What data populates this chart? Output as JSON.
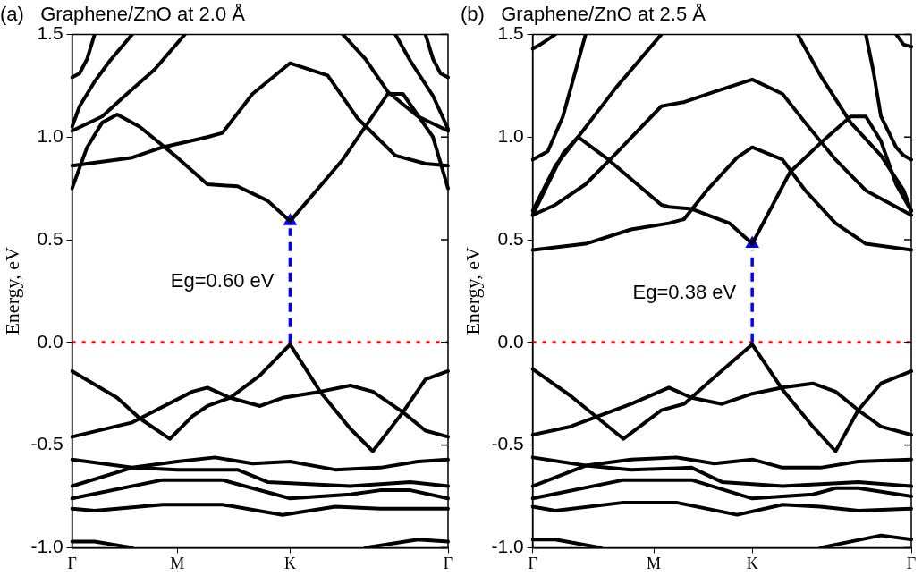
{
  "chart_data": [
    {
      "type": "line",
      "title": "(a)   Graphene/ZnO at 2.0 Å",
      "ylabel": "Energy, eV",
      "ylim": [
        -1,
        1.5
      ],
      "categories": [
        "Γ",
        null,
        null,
        null,
        null,
        null,
        null,
        null,
        null,
        null,
        null,
        null,
        null,
        null,
        "M",
        null,
        null,
        null,
        null,
        null,
        null,
        null,
        null,
        null,
        null,
        null,
        null,
        null,
        null,
        "K",
        null,
        null,
        null,
        null,
        null,
        null,
        null,
        null,
        null,
        null,
        null,
        null,
        null,
        null,
        null,
        null,
        null,
        null,
        null,
        null,
        "Γ"
      ],
      "yticks": [
        {
          "value": -1,
          "label": "-1.0"
        },
        -0.5,
        {
          "value": 0,
          "label": "0.0"
        },
        0.5,
        {
          "value": 1,
          "label": "1.0"
        },
        1.5
      ],
      "marker": "none",
      "legend": false,
      "annotations": [
        "Eg=0.60 eV"
      ],
      "ref_lines": [
        {
          "axis": "y",
          "value": 0,
          "color": "#ff0000",
          "line_style": "dotted"
        }
      ],
      "series": [
        {
          "color": "#000000",
          "values": [
            0.75,
            null,
            0.95,
            null,
            1.07,
            null,
            1.11,
            null,
            null,
            1.05,
            null,
            null,
            null,
            null,
            0.9,
            null,
            null,
            null,
            0.77,
            null,
            null,
            null,
            0.76,
            null,
            null,
            null,
            0.69,
            null,
            null,
            0.59,
            null,
            null,
            null,
            null,
            null,
            null,
            0.89,
            null,
            null,
            null,
            null,
            null,
            1.21,
            null,
            1.21,
            null,
            null,
            null,
            1.0,
            null,
            0.75
          ]
        },
        {
          "color": "#000000",
          "values": [
            0.86,
            null,
            null,
            null,
            null,
            null,
            null,
            null,
            0.9,
            null,
            null,
            null,
            0.95,
            null,
            null,
            null,
            null,
            null,
            1.0,
            null,
            1.02,
            null,
            null,
            null,
            1.21,
            null,
            null,
            null,
            null,
            1.36,
            null,
            null,
            null,
            null,
            1.3,
            null,
            null,
            null,
            1.09,
            null,
            null,
            null,
            null,
            0.91,
            null,
            null,
            null,
            0.87,
            null,
            null,
            0.86
          ]
        },
        {
          "color": "#000000",
          "values": [
            1.29,
            1.31,
            1.38,
            1.5,
            null,
            null,
            null,
            null,
            null,
            null,
            null,
            null,
            null,
            null,
            null,
            null,
            null,
            null,
            null,
            null,
            null,
            null,
            null,
            null,
            null,
            null,
            null,
            null,
            null,
            null,
            null,
            null,
            null,
            null,
            null,
            null,
            null,
            null,
            null,
            null,
            null,
            null,
            null,
            null,
            null,
            null,
            null,
            null,
            null,
            null,
            null
          ]
        },
        {
          "color": "#000000",
          "values": [
            null,
            null,
            null,
            null,
            null,
            null,
            null,
            null,
            null,
            null,
            null,
            null,
            null,
            null,
            null,
            null,
            null,
            null,
            null,
            null,
            null,
            null,
            null,
            null,
            null,
            null,
            null,
            null,
            null,
            null,
            null,
            null,
            null,
            null,
            null,
            null,
            null,
            null,
            null,
            null,
            null,
            null,
            null,
            null,
            null,
            null,
            null,
            1.5,
            1.38,
            1.31,
            1.29
          ]
        },
        {
          "color": "#000000",
          "values": [
            1.05,
            1.15,
            null,
            1.27,
            null,
            1.37,
            null,
            null,
            1.5,
            null,
            null,
            null,
            null,
            null,
            null,
            null,
            null,
            null,
            null,
            null,
            null,
            null,
            null,
            null,
            null,
            null,
            null,
            null,
            null,
            null,
            null,
            null,
            null,
            null,
            null,
            null,
            null,
            null,
            null,
            null,
            null,
            null,
            null,
            null,
            null,
            null,
            null,
            null,
            null,
            null,
            null
          ]
        },
        {
          "color": "#000000",
          "values": [
            null,
            null,
            null,
            null,
            null,
            null,
            null,
            null,
            null,
            null,
            null,
            null,
            null,
            null,
            null,
            null,
            null,
            null,
            null,
            null,
            null,
            null,
            null,
            null,
            null,
            null,
            null,
            null,
            null,
            null,
            null,
            null,
            null,
            null,
            null,
            null,
            null,
            null,
            null,
            null,
            null,
            null,
            null,
            1.5,
            null,
            1.37,
            null,
            null,
            1.2,
            null,
            1.04
          ]
        },
        {
          "color": "#000000",
          "values": [
            1.03,
            null,
            null,
            null,
            1.1,
            null,
            null,
            1.2,
            null,
            null,
            null,
            1.33,
            null,
            null,
            null,
            1.5,
            null,
            null,
            null,
            null,
            null,
            null,
            null,
            null,
            null,
            null,
            null,
            null,
            null,
            null,
            null,
            null,
            null,
            null,
            null,
            null,
            null,
            null,
            null,
            null,
            null,
            null,
            null,
            null,
            null,
            null,
            null,
            null,
            null,
            null,
            null
          ]
        },
        {
          "color": "#000000",
          "values": [
            null,
            null,
            null,
            null,
            null,
            null,
            null,
            null,
            null,
            null,
            null,
            null,
            null,
            null,
            null,
            null,
            null,
            null,
            null,
            null,
            null,
            null,
            null,
            null,
            null,
            null,
            null,
            null,
            null,
            null,
            null,
            null,
            null,
            null,
            null,
            null,
            1.5,
            null,
            null,
            1.38,
            null,
            null,
            1.22,
            null,
            null,
            null,
            1.1,
            null,
            null,
            null,
            1.03
          ]
        },
        {
          "color": "#000000",
          "values": [
            -0.14,
            null,
            null,
            null,
            null,
            null,
            -0.27,
            null,
            null,
            -0.37,
            null,
            null,
            null,
            -0.47,
            null,
            null,
            -0.36,
            null,
            -0.31,
            null,
            null,
            -0.27,
            null,
            null,
            null,
            -0.16,
            null,
            null,
            null,
            -0.01,
            null,
            null,
            null,
            -0.24,
            null,
            null,
            null,
            -0.42,
            null,
            null,
            -0.53,
            null,
            null,
            null,
            -0.34,
            null,
            null,
            -0.18,
            null,
            null,
            -0.14
          ]
        },
        {
          "color": "#000000",
          "values": [
            -0.46,
            null,
            null,
            null,
            null,
            null,
            null,
            null,
            -0.39,
            null,
            null,
            null,
            null,
            null,
            null,
            null,
            -0.24,
            null,
            -0.22,
            null,
            null,
            -0.27,
            null,
            null,
            null,
            -0.31,
            null,
            null,
            -0.27,
            null,
            null,
            null,
            null,
            -0.24,
            null,
            null,
            null,
            -0.21,
            null,
            null,
            -0.24,
            null,
            null,
            null,
            -0.34,
            null,
            null,
            -0.43,
            null,
            null,
            -0.46
          ]
        },
        {
          "color": "#000000",
          "values": [
            -0.57,
            null,
            null,
            null,
            null,
            null,
            null,
            null,
            -0.61,
            null,
            null,
            null,
            null,
            null,
            -0.62,
            null,
            null,
            null,
            null,
            null,
            null,
            null,
            -0.62,
            null,
            null,
            null,
            -0.68,
            null,
            null,
            null,
            null,
            null,
            null,
            null,
            null,
            null,
            null,
            -0.7,
            null,
            null,
            null,
            null,
            null,
            null,
            null,
            -0.68,
            null,
            null,
            null,
            null,
            -0.7
          ]
        },
        {
          "color": "#000000",
          "values": [
            -0.7,
            null,
            null,
            null,
            null,
            null,
            null,
            null,
            -0.61,
            null,
            null,
            null,
            null,
            null,
            -0.58,
            null,
            null,
            null,
            null,
            -0.56,
            null,
            null,
            null,
            null,
            -0.59,
            null,
            null,
            null,
            null,
            -0.58,
            null,
            null,
            null,
            null,
            null,
            -0.62,
            null,
            null,
            null,
            null,
            null,
            -0.61,
            null,
            null,
            null,
            null,
            -0.58,
            null,
            null,
            null,
            -0.57
          ]
        },
        {
          "color": "#000000",
          "values": [
            -0.76,
            null,
            null,
            null,
            null,
            null,
            null,
            null,
            null,
            null,
            null,
            null,
            -0.67,
            null,
            null,
            null,
            null,
            null,
            null,
            null,
            -0.67,
            null,
            null,
            null,
            null,
            null,
            null,
            null,
            null,
            -0.76,
            null,
            null,
            null,
            null,
            null,
            null,
            null,
            -0.74,
            null,
            null,
            null,
            -0.72,
            null,
            null,
            null,
            -0.72,
            null,
            null,
            null,
            null,
            -0.76
          ]
        },
        {
          "color": "#000000",
          "values": [
            -0.81,
            null,
            null,
            -0.82,
            null,
            null,
            null,
            null,
            null,
            null,
            null,
            null,
            -0.79,
            null,
            null,
            null,
            null,
            null,
            null,
            null,
            -0.79,
            null,
            null,
            null,
            null,
            null,
            null,
            null,
            -0.84,
            null,
            null,
            null,
            null,
            null,
            null,
            -0.8,
            null,
            null,
            null,
            null,
            null,
            -0.81,
            null,
            null,
            null,
            null,
            null,
            null,
            null,
            null,
            -0.81
          ]
        },
        {
          "color": "#000000",
          "values": [
            -0.97,
            null,
            null,
            -0.97,
            null,
            null,
            null,
            null,
            -1.0,
            null,
            null,
            null,
            null,
            null,
            null,
            null,
            null,
            null,
            null,
            null,
            null,
            null,
            null,
            null,
            null,
            null,
            null,
            null,
            null,
            null,
            null,
            null,
            null,
            null,
            null,
            null,
            null,
            null,
            null,
            null,
            null,
            null,
            null,
            null,
            null,
            null,
            null,
            null,
            null,
            null,
            null
          ]
        },
        {
          "color": "#000000",
          "values": [
            null,
            null,
            null,
            null,
            null,
            null,
            null,
            null,
            null,
            null,
            null,
            null,
            null,
            null,
            null,
            null,
            null,
            null,
            null,
            null,
            null,
            null,
            null,
            null,
            null,
            null,
            null,
            null,
            null,
            null,
            null,
            null,
            null,
            null,
            null,
            null,
            null,
            null,
            null,
            -1.0,
            null,
            null,
            null,
            null,
            null,
            null,
            -0.96,
            null,
            null,
            null,
            -0.97
          ]
        },
        {
          "type": "lollipop",
          "color": "#0000ff",
          "line_style": "dashed",
          "marker": "triangle",
          "values": [
            null,
            null,
            null,
            null,
            null,
            null,
            null,
            null,
            null,
            null,
            null,
            null,
            null,
            null,
            null,
            null,
            null,
            null,
            null,
            null,
            null,
            null,
            null,
            null,
            null,
            null,
            null,
            null,
            null,
            0.59,
            null,
            null,
            null,
            null,
            null,
            null,
            null,
            null,
            null,
            null,
            null,
            null,
            null,
            null,
            null,
            null,
            null,
            null,
            null,
            null,
            null
          ]
        }
      ]
    },
    {
      "type": "line",
      "title": "(b)   Graphene/ZnO at 2.5 Å",
      "ylabel": "Energy, eV",
      "ylim": [
        -1,
        1.5
      ],
      "categories": [
        "Γ",
        null,
        null,
        null,
        null,
        null,
        null,
        null,
        null,
        null,
        null,
        null,
        null,
        null,
        null,
        null,
        "M",
        null,
        null,
        null,
        null,
        null,
        null,
        null,
        null,
        null,
        null,
        null,
        null,
        "K",
        null,
        null,
        null,
        null,
        null,
        null,
        null,
        null,
        null,
        null,
        null,
        null,
        null,
        null,
        null,
        null,
        null,
        null,
        null,
        null,
        "Γ"
      ],
      "yticks": [
        {
          "value": -1,
          "label": "-1.0"
        },
        -0.5,
        {
          "value": 0,
          "label": "0.0"
        },
        0.5,
        {
          "value": 1,
          "label": "1.0"
        },
        1.5
      ],
      "marker": "none",
      "legend": false,
      "annotations": [
        "Eg=0.38 eV"
      ],
      "ref_lines": [
        {
          "axis": "y",
          "value": 0,
          "color": "#ff0000",
          "line_style": "dotted"
        }
      ],
      "series": [
        {
          "color": "#000000",
          "values": [
            0.62,
            null,
            null,
            null,
            0.92,
            null,
            1.0,
            null,
            null,
            null,
            0.89,
            null,
            null,
            null,
            null,
            null,
            null,
            0.67,
            0.66,
            null,
            null,
            0.65,
            null,
            null,
            null,
            null,
            0.58,
            null,
            null,
            0.48,
            null,
            null,
            null,
            null,
            0.83,
            null,
            null,
            null,
            0.97,
            null,
            null,
            null,
            1.1,
            null,
            1.1,
            null,
            0.98,
            null,
            0.77,
            null,
            0.64
          ]
        },
        {
          "color": "#000000",
          "values": [
            0.62,
            null,
            null,
            0.67,
            null,
            null,
            null,
            0.77,
            null,
            null,
            null,
            0.92,
            null,
            null,
            null,
            null,
            null,
            1.15,
            null,
            null,
            1.17,
            null,
            null,
            null,
            1.22,
            null,
            null,
            null,
            null,
            1.28,
            null,
            null,
            null,
            1.21,
            null,
            null,
            1.07,
            null,
            null,
            null,
            0.89,
            null,
            null,
            null,
            0.74,
            null,
            null,
            null,
            0.66,
            null,
            0.62
          ]
        },
        {
          "color": "#000000",
          "values": [
            0.45,
            null,
            null,
            null,
            null,
            null,
            null,
            0.48,
            null,
            null,
            null,
            null,
            null,
            0.55,
            null,
            null,
            null,
            null,
            0.58,
            null,
            0.6,
            null,
            null,
            0.74,
            null,
            null,
            null,
            0.9,
            null,
            0.95,
            null,
            null,
            null,
            0.89,
            null,
            null,
            0.74,
            null,
            null,
            null,
            0.58,
            null,
            null,
            null,
            0.48,
            null,
            null,
            null,
            null,
            null,
            0.45
          ]
        },
        {
          "color": "#000000",
          "values": [
            0.89,
            null,
            0.93,
            null,
            1.1,
            null,
            null,
            1.5,
            null,
            null,
            null,
            null,
            null,
            null,
            null,
            null,
            null,
            null,
            null,
            null,
            null,
            null,
            null,
            null,
            null,
            null,
            null,
            null,
            null,
            null,
            null,
            null,
            null,
            null,
            null,
            null,
            null,
            null,
            null,
            null,
            null,
            null,
            null,
            null,
            null,
            null,
            null,
            null,
            null,
            null,
            null
          ]
        },
        {
          "color": "#000000",
          "values": [
            0.64,
            null,
            null,
            0.86,
            null,
            null,
            1.0,
            null,
            null,
            null,
            null,
            1.24,
            null,
            null,
            null,
            null,
            null,
            1.5,
            null,
            null,
            null,
            null,
            null,
            null,
            null,
            null,
            null,
            null,
            null,
            null,
            null,
            null,
            null,
            null,
            null,
            null,
            null,
            null,
            null,
            null,
            null,
            null,
            null,
            null,
            null,
            null,
            null,
            null,
            null,
            null,
            null
          ]
        },
        {
          "color": "#000000",
          "values": [
            1.43,
            1.45,
            null,
            1.5,
            null,
            null,
            null,
            null,
            null,
            null,
            null,
            null,
            null,
            null,
            null,
            null,
            null,
            null,
            null,
            null,
            null,
            null,
            null,
            null,
            null,
            null,
            null,
            null,
            null,
            null,
            null,
            null,
            null,
            null,
            null,
            null,
            null,
            null,
            null,
            null,
            null,
            null,
            null,
            null,
            null,
            null,
            null,
            null,
            null,
            null,
            null
          ]
        },
        {
          "color": "#000000",
          "values": [
            null,
            null,
            null,
            null,
            null,
            null,
            null,
            null,
            null,
            null,
            null,
            null,
            null,
            null,
            null,
            null,
            null,
            null,
            null,
            null,
            null,
            null,
            null,
            null,
            null,
            null,
            null,
            null,
            null,
            null,
            null,
            null,
            null,
            null,
            null,
            null,
            null,
            null,
            null,
            null,
            null,
            null,
            null,
            null,
            null,
            null,
            null,
            null,
            1.5,
            1.45,
            1.44
          ]
        },
        {
          "color": "#000000",
          "values": [
            null,
            null,
            null,
            null,
            null,
            null,
            null,
            null,
            null,
            null,
            null,
            null,
            null,
            null,
            null,
            null,
            null,
            null,
            null,
            null,
            null,
            null,
            null,
            null,
            null,
            null,
            null,
            null,
            null,
            null,
            null,
            null,
            null,
            null,
            null,
            null,
            null,
            null,
            null,
            null,
            null,
            null,
            null,
            null,
            1.5,
            1.32,
            1.1,
            null,
            0.95,
            0.91,
            0.89
          ]
        },
        {
          "color": "#000000",
          "values": [
            null,
            null,
            null,
            null,
            null,
            null,
            null,
            null,
            null,
            null,
            null,
            null,
            null,
            null,
            null,
            null,
            null,
            null,
            null,
            null,
            null,
            null,
            null,
            null,
            null,
            null,
            null,
            null,
            null,
            null,
            null,
            null,
            null,
            null,
            null,
            1.5,
            null,
            null,
            1.3,
            null,
            null,
            null,
            1.07,
            null,
            null,
            null,
            0.91,
            null,
            null,
            0.74,
            0.64
          ]
        },
        {
          "color": "#000000",
          "values": [
            -0.13,
            null,
            null,
            null,
            null,
            -0.26,
            null,
            null,
            null,
            null,
            null,
            null,
            -0.47,
            null,
            null,
            null,
            null,
            -0.33,
            null,
            null,
            -0.3,
            null,
            null,
            null,
            -0.17,
            null,
            null,
            null,
            null,
            -0.01,
            null,
            null,
            null,
            -0.23,
            null,
            null,
            null,
            -0.41,
            null,
            null,
            -0.53,
            null,
            null,
            -0.33,
            null,
            null,
            -0.2,
            null,
            null,
            null,
            -0.14
          ]
        },
        {
          "color": "#000000",
          "values": [
            -0.45,
            null,
            null,
            null,
            null,
            -0.41,
            null,
            null,
            null,
            null,
            null,
            null,
            null,
            -0.3,
            null,
            null,
            null,
            null,
            -0.22,
            null,
            null,
            -0.27,
            null,
            null,
            null,
            -0.3,
            null,
            null,
            null,
            -0.25,
            null,
            null,
            null,
            -0.22,
            null,
            null,
            null,
            -0.2,
            null,
            null,
            -0.24,
            null,
            null,
            -0.33,
            null,
            null,
            -0.41,
            null,
            null,
            null,
            -0.45
          ]
        },
        {
          "color": "#000000",
          "values": [
            -0.56,
            null,
            null,
            null,
            null,
            null,
            null,
            -0.6,
            null,
            null,
            null,
            null,
            null,
            -0.62,
            null,
            null,
            null,
            null,
            null,
            null,
            null,
            -0.61,
            null,
            null,
            null,
            -0.68,
            null,
            null,
            null,
            null,
            null,
            null,
            null,
            -0.7,
            null,
            null,
            null,
            null,
            -0.69,
            null,
            null,
            null,
            null,
            -0.68,
            null,
            null,
            null,
            null,
            null,
            null,
            -0.7
          ]
        },
        {
          "color": "#000000",
          "values": [
            -0.7,
            null,
            null,
            null,
            null,
            null,
            null,
            -0.6,
            null,
            null,
            null,
            null,
            null,
            -0.57,
            null,
            null,
            null,
            null,
            null,
            -0.56,
            null,
            null,
            null,
            null,
            -0.59,
            null,
            null,
            null,
            null,
            -0.57,
            null,
            null,
            null,
            -0.61,
            null,
            null,
            null,
            null,
            -0.61,
            null,
            null,
            null,
            null,
            -0.58,
            null,
            null,
            null,
            null,
            null,
            null,
            -0.57
          ]
        },
        {
          "color": "#000000",
          "values": [
            -0.76,
            null,
            null,
            null,
            null,
            null,
            null,
            null,
            null,
            null,
            null,
            null,
            -0.67,
            null,
            null,
            null,
            null,
            null,
            null,
            null,
            null,
            -0.67,
            null,
            null,
            null,
            null,
            null,
            null,
            null,
            -0.76,
            null,
            null,
            null,
            null,
            null,
            null,
            null,
            -0.74,
            null,
            null,
            -0.71,
            null,
            null,
            -0.71,
            null,
            null,
            null,
            null,
            null,
            null,
            -0.75
          ]
        },
        {
          "color": "#000000",
          "values": [
            -0.8,
            null,
            null,
            -0.82,
            null,
            null,
            null,
            null,
            null,
            null,
            null,
            null,
            -0.78,
            null,
            null,
            null,
            null,
            null,
            null,
            -0.78,
            null,
            null,
            null,
            null,
            null,
            null,
            null,
            -0.84,
            null,
            null,
            null,
            null,
            null,
            -0.79,
            null,
            null,
            null,
            null,
            -0.8,
            null,
            null,
            null,
            null,
            -0.82,
            null,
            null,
            null,
            null,
            null,
            null,
            -0.81
          ]
        },
        {
          "color": "#000000",
          "values": [
            -0.96,
            null,
            null,
            -0.96,
            null,
            null,
            null,
            null,
            null,
            -1.0,
            null,
            null,
            null,
            null,
            null,
            null,
            null,
            null,
            null,
            null,
            null,
            null,
            null,
            null,
            null,
            null,
            null,
            null,
            null,
            null,
            null,
            null,
            null,
            null,
            null,
            null,
            null,
            null,
            null,
            null,
            null,
            null,
            null,
            null,
            null,
            null,
            null,
            null,
            null,
            null,
            null
          ]
        },
        {
          "color": "#000000",
          "values": [
            null,
            null,
            null,
            null,
            null,
            null,
            null,
            null,
            null,
            null,
            null,
            null,
            null,
            null,
            null,
            null,
            null,
            null,
            null,
            null,
            null,
            null,
            null,
            null,
            null,
            null,
            null,
            null,
            null,
            null,
            null,
            null,
            null,
            null,
            null,
            null,
            null,
            null,
            -1.0,
            null,
            null,
            null,
            null,
            null,
            null,
            null,
            -0.94,
            null,
            null,
            null,
            -0.96
          ]
        },
        {
          "type": "lollipop",
          "color": "#0000ff",
          "line_style": "dashed",
          "marker": "triangle",
          "values": [
            null,
            null,
            null,
            null,
            null,
            null,
            null,
            null,
            null,
            null,
            null,
            null,
            null,
            null,
            null,
            null,
            null,
            null,
            null,
            null,
            null,
            null,
            null,
            null,
            null,
            null,
            null,
            null,
            null,
            0.48,
            null,
            null,
            null,
            null,
            null,
            null,
            null,
            null,
            null,
            null,
            null,
            null,
            null,
            null,
            null,
            null,
            null,
            null,
            null,
            null,
            null
          ]
        }
      ]
    }
  ]
}
